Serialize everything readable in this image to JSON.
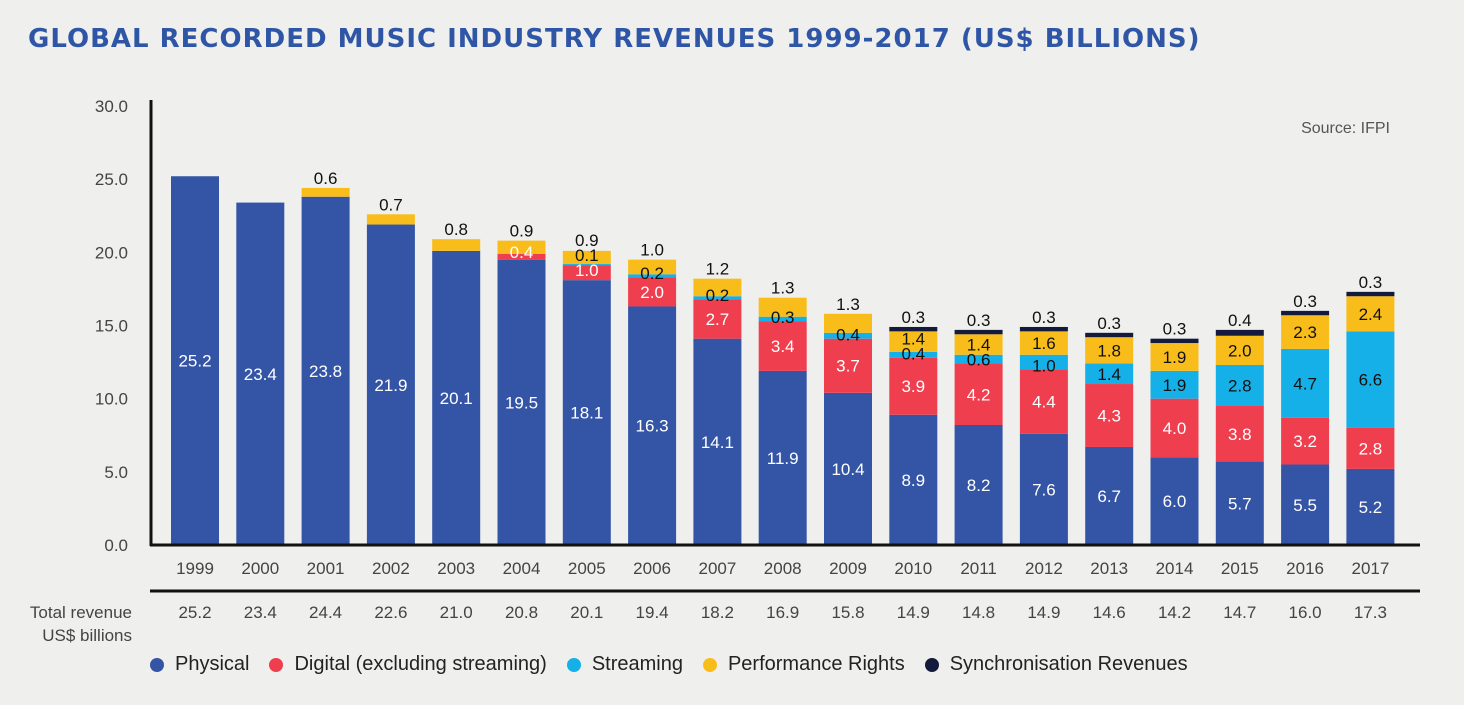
{
  "title": "GLOBAL RECORDED MUSIC INDUSTRY REVENUES 1999-2017 (US$ BILLIONS)",
  "source": "Source: IFPI",
  "total_label_line1": "Total revenue",
  "total_label_line2": "US$ billions",
  "colors": {
    "physical": "#3455a6",
    "digital": "#ef3e4e",
    "streaming": "#15b0e8",
    "performance": "#f9bd1b",
    "sync": "#141a3c"
  },
  "legend": [
    {
      "key": "physical",
      "label": "Physical"
    },
    {
      "key": "digital",
      "label": "Digital (excluding streaming)"
    },
    {
      "key": "streaming",
      "label": "Streaming"
    },
    {
      "key": "performance",
      "label": "Performance Rights"
    },
    {
      "key": "sync",
      "label": "Synchronisation Revenues"
    }
  ],
  "chart_data": {
    "type": "bar",
    "stacked": true,
    "title": "GLOBAL RECORDED MUSIC INDUSTRY REVENUES 1999-2017 (US$ BILLIONS)",
    "ylim": [
      0,
      30
    ],
    "yticks": [
      "0.0",
      "5.0",
      "10.0",
      "15.0",
      "20.0",
      "25.0",
      "30.0"
    ],
    "grid": false,
    "legend_position": "bottom",
    "categories": [
      "1999",
      "2000",
      "2001",
      "2002",
      "2003",
      "2004",
      "2005",
      "2006",
      "2007",
      "2008",
      "2009",
      "2010",
      "2011",
      "2012",
      "2013",
      "2014",
      "2015",
      "2016",
      "2017"
    ],
    "series": [
      {
        "key": "physical",
        "name": "Physical",
        "values": [
          25.2,
          23.4,
          23.8,
          21.9,
          20.1,
          19.5,
          18.1,
          16.3,
          14.1,
          11.9,
          10.4,
          8.9,
          8.2,
          7.6,
          6.7,
          6.0,
          5.7,
          5.5,
          5.2
        ],
        "labels": [
          "25.2",
          "23.4",
          "23.8",
          "21.9",
          "20.1",
          "19.5",
          "18.1",
          "16.3",
          "14.1",
          "11.9",
          "10.4",
          "8.9",
          "8.2",
          "7.6",
          "6.7",
          "6.0",
          "5.7",
          "5.5",
          "5.2"
        ]
      },
      {
        "key": "digital",
        "name": "Digital (excluding streaming)",
        "values": [
          0,
          0,
          0,
          0,
          0,
          0.4,
          1.0,
          2.0,
          2.7,
          3.4,
          3.7,
          3.9,
          4.2,
          4.4,
          4.3,
          4.0,
          3.8,
          3.2,
          2.8
        ],
        "labels": [
          "",
          "",
          "",
          "",
          "",
          "0.4",
          "1.0",
          "2.0",
          "2.7",
          "3.4",
          "3.7",
          "3.9",
          "4.2",
          "4.4",
          "4.3",
          "4.0",
          "3.8",
          "3.2",
          "2.8"
        ]
      },
      {
        "key": "streaming",
        "name": "Streaming",
        "values": [
          0,
          0,
          0,
          0,
          0,
          0,
          0.1,
          0.2,
          0.2,
          0.3,
          0.4,
          0.4,
          0.6,
          1.0,
          1.4,
          1.9,
          2.8,
          4.7,
          6.6
        ],
        "labels": [
          "",
          "",
          "",
          "",
          "",
          "",
          "0.1",
          "0.2",
          "0.2",
          "0.3",
          "0.4",
          "0.4",
          "0.6",
          "1.0",
          "1.4",
          "1.9",
          "2.8",
          "4.7",
          "6.6"
        ]
      },
      {
        "key": "performance",
        "name": "Performance Rights",
        "values": [
          0,
          0,
          0.6,
          0.7,
          0.8,
          0.9,
          0.9,
          1.0,
          1.2,
          1.3,
          1.3,
          1.4,
          1.4,
          1.6,
          1.8,
          1.9,
          2.0,
          2.3,
          2.4
        ],
        "labels": [
          "",
          "",
          "0.6",
          "0.7",
          "0.8",
          "0.9",
          "0.9",
          "1.0",
          "1.2",
          "1.3",
          "1.3",
          "1.4",
          "1.4",
          "1.6",
          "1.8",
          "1.9",
          "2.0",
          "2.3",
          "2.4"
        ]
      },
      {
        "key": "sync",
        "name": "Synchronisation Revenues",
        "values": [
          0,
          0,
          0,
          0,
          0,
          0,
          0,
          0,
          0,
          0,
          0,
          0.3,
          0.3,
          0.3,
          0.3,
          0.3,
          0.4,
          0.3,
          0.3
        ],
        "labels": [
          "",
          "",
          "",
          "",
          "",
          "",
          "",
          "",
          "",
          "",
          "",
          "0.3",
          "0.3",
          "0.3",
          "0.3",
          "0.3",
          "0.4",
          "0.3",
          "0.3"
        ]
      }
    ],
    "totals": [
      "25.2",
      "23.4",
      "24.4",
      "22.6",
      "21.0",
      "20.8",
      "20.1",
      "19.4",
      "18.2",
      "16.9",
      "15.8",
      "14.9",
      "14.8",
      "14.9",
      "14.6",
      "14.2",
      "14.7",
      "16.0",
      "17.3"
    ]
  }
}
